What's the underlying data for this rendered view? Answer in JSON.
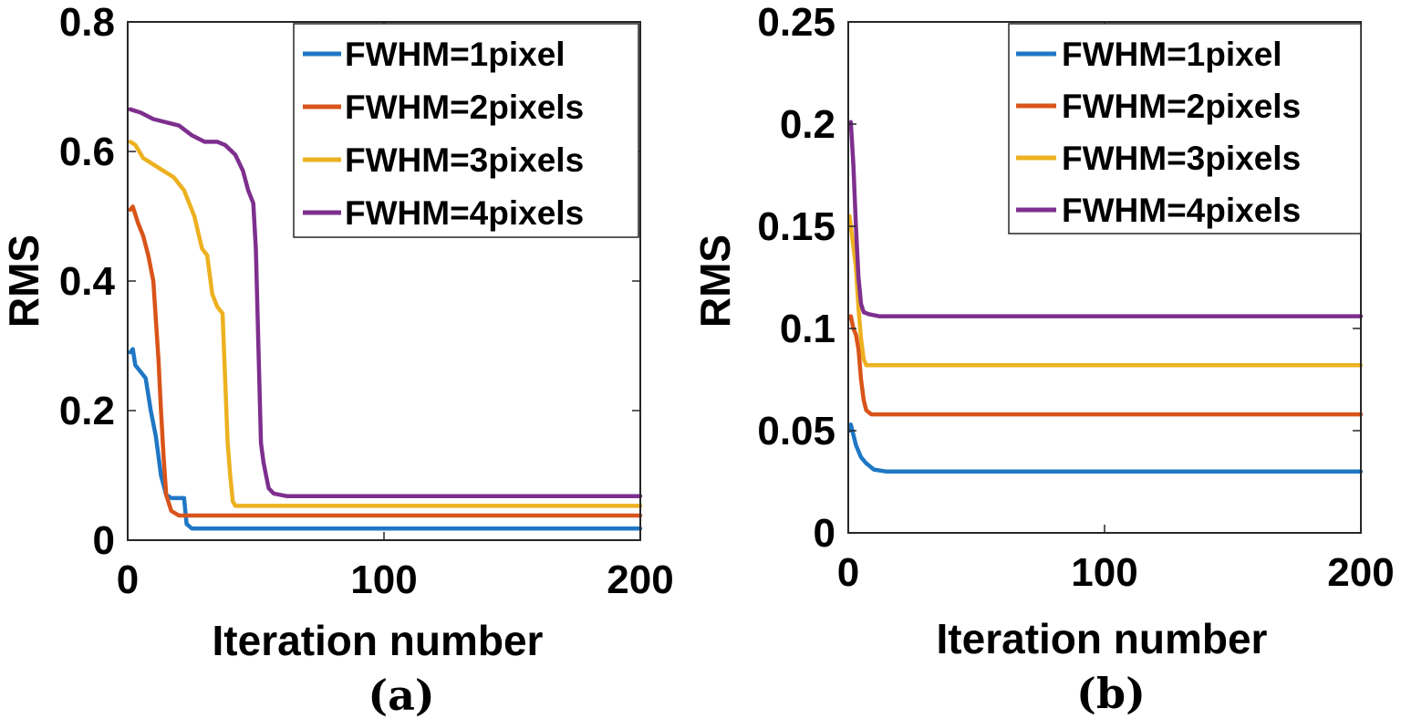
{
  "legend": {
    "entries": [
      "FWHM=1pixel",
      "FWHM=2pixels",
      "FWHM=3pixels",
      "FWHM=4pixels"
    ],
    "colors": [
      "#1f77c4",
      "#d9541a",
      "#edb120",
      "#7e2f8e"
    ]
  },
  "chart_data": [
    {
      "type": "line",
      "caption": "(a)",
      "xlabel": "Iteration number",
      "ylabel": "RMS",
      "xlim": [
        0,
        200
      ],
      "ylim": [
        0,
        0.8
      ],
      "xticks": [
        0,
        100,
        200
      ],
      "yticks": [
        0,
        0.2,
        0.4,
        0.6,
        0.8
      ],
      "xtick_labels": [
        "0",
        "100",
        "200"
      ],
      "ytick_labels": [
        "0",
        "0.2",
        "0.4",
        "0.6",
        "0.8"
      ],
      "grid": false,
      "legend_position": "top-right",
      "series": [
        {
          "name": "FWHM=1pixel",
          "color": "#1f77c4",
          "points": [
            [
              1,
              0.29
            ],
            [
              2,
              0.295
            ],
            [
              3,
              0.27
            ],
            [
              5,
              0.26
            ],
            [
              7,
              0.25
            ],
            [
              9,
              0.2
            ],
            [
              11,
              0.16
            ],
            [
              13,
              0.1
            ],
            [
              15,
              0.07
            ],
            [
              17,
              0.065
            ],
            [
              22,
              0.065
            ],
            [
              23,
              0.025
            ],
            [
              25,
              0.018
            ],
            [
              200,
              0.018
            ]
          ]
        },
        {
          "name": "FWHM=2pixels",
          "color": "#d9541a",
          "points": [
            [
              1,
              0.51
            ],
            [
              2,
              0.515
            ],
            [
              4,
              0.49
            ],
            [
              6,
              0.47
            ],
            [
              8,
              0.44
            ],
            [
              10,
              0.4
            ],
            [
              11,
              0.34
            ],
            [
              12,
              0.28
            ],
            [
              13,
              0.2
            ],
            [
              14,
              0.13
            ],
            [
              15,
              0.07
            ],
            [
              17,
              0.045
            ],
            [
              20,
              0.038
            ],
            [
              200,
              0.038
            ]
          ]
        },
        {
          "name": "FWHM=3pixels",
          "color": "#edb120",
          "points": [
            [
              1,
              0.615
            ],
            [
              3,
              0.61
            ],
            [
              6,
              0.59
            ],
            [
              12,
              0.575
            ],
            [
              18,
              0.56
            ],
            [
              22,
              0.54
            ],
            [
              26,
              0.5
            ],
            [
              29,
              0.45
            ],
            [
              31,
              0.44
            ],
            [
              33,
              0.38
            ],
            [
              35,
              0.36
            ],
            [
              37,
              0.35
            ],
            [
              38,
              0.25
            ],
            [
              39,
              0.15
            ],
            [
              40,
              0.1
            ],
            [
              41,
              0.06
            ],
            [
              42,
              0.053
            ],
            [
              200,
              0.053
            ]
          ]
        },
        {
          "name": "FWHM=4pixels",
          "color": "#7e2f8e",
          "points": [
            [
              1,
              0.665
            ],
            [
              5,
              0.66
            ],
            [
              10,
              0.65
            ],
            [
              15,
              0.645
            ],
            [
              20,
              0.64
            ],
            [
              25,
              0.625
            ],
            [
              30,
              0.615
            ],
            [
              35,
              0.615
            ],
            [
              38,
              0.61
            ],
            [
              42,
              0.595
            ],
            [
              45,
              0.57
            ],
            [
              47,
              0.54
            ],
            [
              49,
              0.52
            ],
            [
              50,
              0.45
            ],
            [
              51,
              0.3
            ],
            [
              52,
              0.15
            ],
            [
              53,
              0.12
            ],
            [
              54,
              0.1
            ],
            [
              55,
              0.08
            ],
            [
              57,
              0.072
            ],
            [
              62,
              0.068
            ],
            [
              200,
              0.068
            ]
          ]
        }
      ]
    },
    {
      "type": "line",
      "caption": "(b)",
      "xlabel": "Iteration number",
      "ylabel": "RMS",
      "xlim": [
        0,
        200
      ],
      "ylim": [
        0,
        0.25
      ],
      "xticks": [
        0,
        100,
        200
      ],
      "yticks": [
        0,
        0.05,
        0.1,
        0.15,
        0.2,
        0.25
      ],
      "xtick_labels": [
        "0",
        "100",
        "200"
      ],
      "ytick_labels": [
        "0",
        "0.05",
        "0.1",
        "0.15",
        "0.2",
        "0.25"
      ],
      "grid": false,
      "legend_position": "top-right",
      "series": [
        {
          "name": "FWHM=1pixel",
          "color": "#1f77c4",
          "points": [
            [
              0.5,
              0.05
            ],
            [
              1,
              0.053
            ],
            [
              2,
              0.048
            ],
            [
              3,
              0.043
            ],
            [
              5,
              0.037
            ],
            [
              7,
              0.034
            ],
            [
              10,
              0.031
            ],
            [
              15,
              0.03
            ],
            [
              200,
              0.03
            ]
          ]
        },
        {
          "name": "FWHM=2pixels",
          "color": "#d9541a",
          "points": [
            [
              0.5,
              0.105
            ],
            [
              1,
              0.106
            ],
            [
              2,
              0.1
            ],
            [
              3,
              0.097
            ],
            [
              4,
              0.09
            ],
            [
              5,
              0.075
            ],
            [
              6,
              0.065
            ],
            [
              7,
              0.06
            ],
            [
              9,
              0.058
            ],
            [
              200,
              0.058
            ]
          ]
        },
        {
          "name": "FWHM=3pixels",
          "color": "#edb120",
          "points": [
            [
              0.5,
              0.155
            ],
            [
              1,
              0.15
            ],
            [
              2,
              0.14
            ],
            [
              3,
              0.13
            ],
            [
              4,
              0.11
            ],
            [
              5,
              0.095
            ],
            [
              6,
              0.085
            ],
            [
              7,
              0.082
            ],
            [
              200,
              0.082
            ]
          ]
        },
        {
          "name": "FWHM=4pixels",
          "color": "#7e2f8e",
          "points": [
            [
              0.5,
              0.2
            ],
            [
              1,
              0.201
            ],
            [
              2,
              0.18
            ],
            [
              3,
              0.15
            ],
            [
              4,
              0.125
            ],
            [
              5,
              0.112
            ],
            [
              6,
              0.108
            ],
            [
              8,
              0.107
            ],
            [
              12,
              0.106
            ],
            [
              200,
              0.106
            ]
          ]
        }
      ]
    }
  ]
}
